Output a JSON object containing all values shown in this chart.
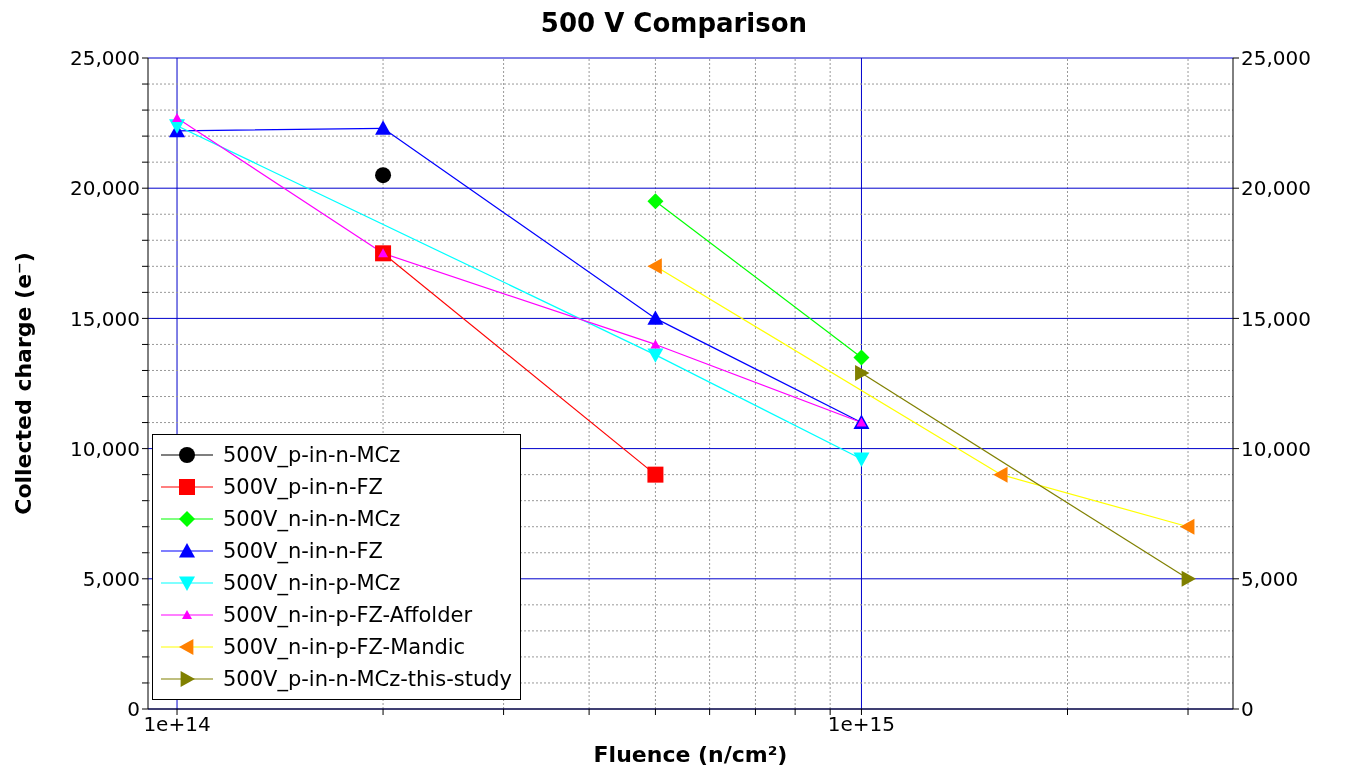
{
  "chart_data": {
    "type": "line",
    "title": "500 V Comparison",
    "xlabel": "Fluence (n/cm²)",
    "ylabel": "Collected charge (e⁻)",
    "log": "x",
    "grid": true,
    "legend": "bottom left",
    "xlim": [
      90700000000000.0,
      3490000000000000.0
    ],
    "xticks": [
      {
        "value": 100000000000000.0,
        "label": "1e+14"
      },
      {
        "value": 200000000000000.0,
        "label": null
      },
      {
        "value": 300000000000000.0,
        "label": null
      },
      {
        "value": 400000000000000.0,
        "label": null
      },
      {
        "value": 500000000000000.0,
        "label": null
      },
      {
        "value": 600000000000000.0,
        "label": null
      },
      {
        "value": 700000000000000.0,
        "label": null
      },
      {
        "value": 800000000000000.0,
        "label": null
      },
      {
        "value": 900000000000000.0,
        "label": null
      },
      {
        "value": 1000000000000000.0,
        "label": "1e+15"
      },
      {
        "value": 2000000000000000.0,
        "label": null
      },
      {
        "value": 3000000000000000.0,
        "label": null
      }
    ],
    "ylim": [
      0,
      25000
    ],
    "yticks": [
      {
        "value": 0,
        "label": "0"
      },
      {
        "value": 1000,
        "label": null
      },
      {
        "value": 2000,
        "label": null
      },
      {
        "value": 3000,
        "label": null
      },
      {
        "value": 4000,
        "label": null
      },
      {
        "value": 5000,
        "label": "5,000"
      },
      {
        "value": 6000,
        "label": null
      },
      {
        "value": 7000,
        "label": null
      },
      {
        "value": 8000,
        "label": null
      },
      {
        "value": 9000,
        "label": null
      },
      {
        "value": 10000,
        "label": "10,000"
      },
      {
        "value": 11000,
        "label": null
      },
      {
        "value": 12000,
        "label": null
      },
      {
        "value": 13000,
        "label": null
      },
      {
        "value": 14000,
        "label": null
      },
      {
        "value": 15000,
        "label": "15,000"
      },
      {
        "value": 16000,
        "label": null
      },
      {
        "value": 17000,
        "label": null
      },
      {
        "value": 18000,
        "label": null
      },
      {
        "value": 19000,
        "label": null
      },
      {
        "value": 20000,
        "label": "20,000"
      },
      {
        "value": 21000,
        "label": null
      },
      {
        "value": 22000,
        "label": null
      },
      {
        "value": 23000,
        "label": null
      },
      {
        "value": 24000,
        "label": null
      },
      {
        "value": 25000,
        "label": "25,000"
      }
    ],
    "y2lim": [
      0,
      25000
    ],
    "y2ticks": [
      {
        "value": 0,
        "label": "0"
      },
      {
        "value": 5000,
        "label": "5,000"
      },
      {
        "value": 10000,
        "label": "10,000"
      },
      {
        "value": 15000,
        "label": "15,000"
      },
      {
        "value": 20000,
        "label": "20,000"
      },
      {
        "value": 25000,
        "label": "25,000"
      }
    ],
    "series": [
      {
        "name": "500V_p-in-n-MCz",
        "color": "#000000",
        "marker": "circle",
        "x": [
          200000000000000.0
        ],
        "values": [
          20500
        ]
      },
      {
        "name": "500V_p-in-n-FZ",
        "color": "#ff0000",
        "marker": "square",
        "x": [
          200000000000000.0,
          500000000000000.0
        ],
        "values": [
          17500,
          9000
        ]
      },
      {
        "name": "500V_n-in-n-MCz",
        "color": "#00ff00",
        "marker": "diamond",
        "x": [
          500000000000000.0,
          1000000000000000.0
        ],
        "values": [
          19500,
          13500
        ]
      },
      {
        "name": "500V_n-in-n-FZ",
        "color": "#0000ff",
        "marker": "triangle",
        "x": [
          100000000000000.0,
          200000000000000.0,
          500000000000000.0,
          1000000000000000.0
        ],
        "values": [
          22200,
          22300,
          15000,
          11000
        ]
      },
      {
        "name": "500V_n-in-p-MCz",
        "color": "#00ffff",
        "marker": "triangle-down",
        "x": [
          100000000000000.0,
          500000000000000.0,
          1000000000000000.0
        ],
        "values": [
          22400,
          13600,
          9600
        ]
      },
      {
        "name": "500V_n-in-p-FZ-Affolder",
        "color": "#ff00ff",
        "marker": "triangle",
        "x": [
          100000000000000.0,
          200000000000000.0,
          500000000000000.0,
          1000000000000000.0
        ],
        "values": [
          22700,
          17500,
          14000,
          11000
        ]
      },
      {
        "name": "500V_n-in-p-FZ-Mandic",
        "color": "#ffff00",
        "colors": [
          "#ff8000",
          "#ff8000",
          "#ff8000"
        ],
        "marker": "triangle-left",
        "x": [
          500000000000000.0,
          1600000000000000.0,
          3000000000000000.0
        ],
        "values": [
          17000,
          9000,
          7000
        ]
      },
      {
        "name": "500V_p-in-n-MCz-this-study",
        "color": "#808000",
        "marker": "triangle-right",
        "x": [
          1000000000000000.0,
          3000000000000000.0
        ],
        "values": [
          12900,
          5000
        ]
      }
    ]
  }
}
